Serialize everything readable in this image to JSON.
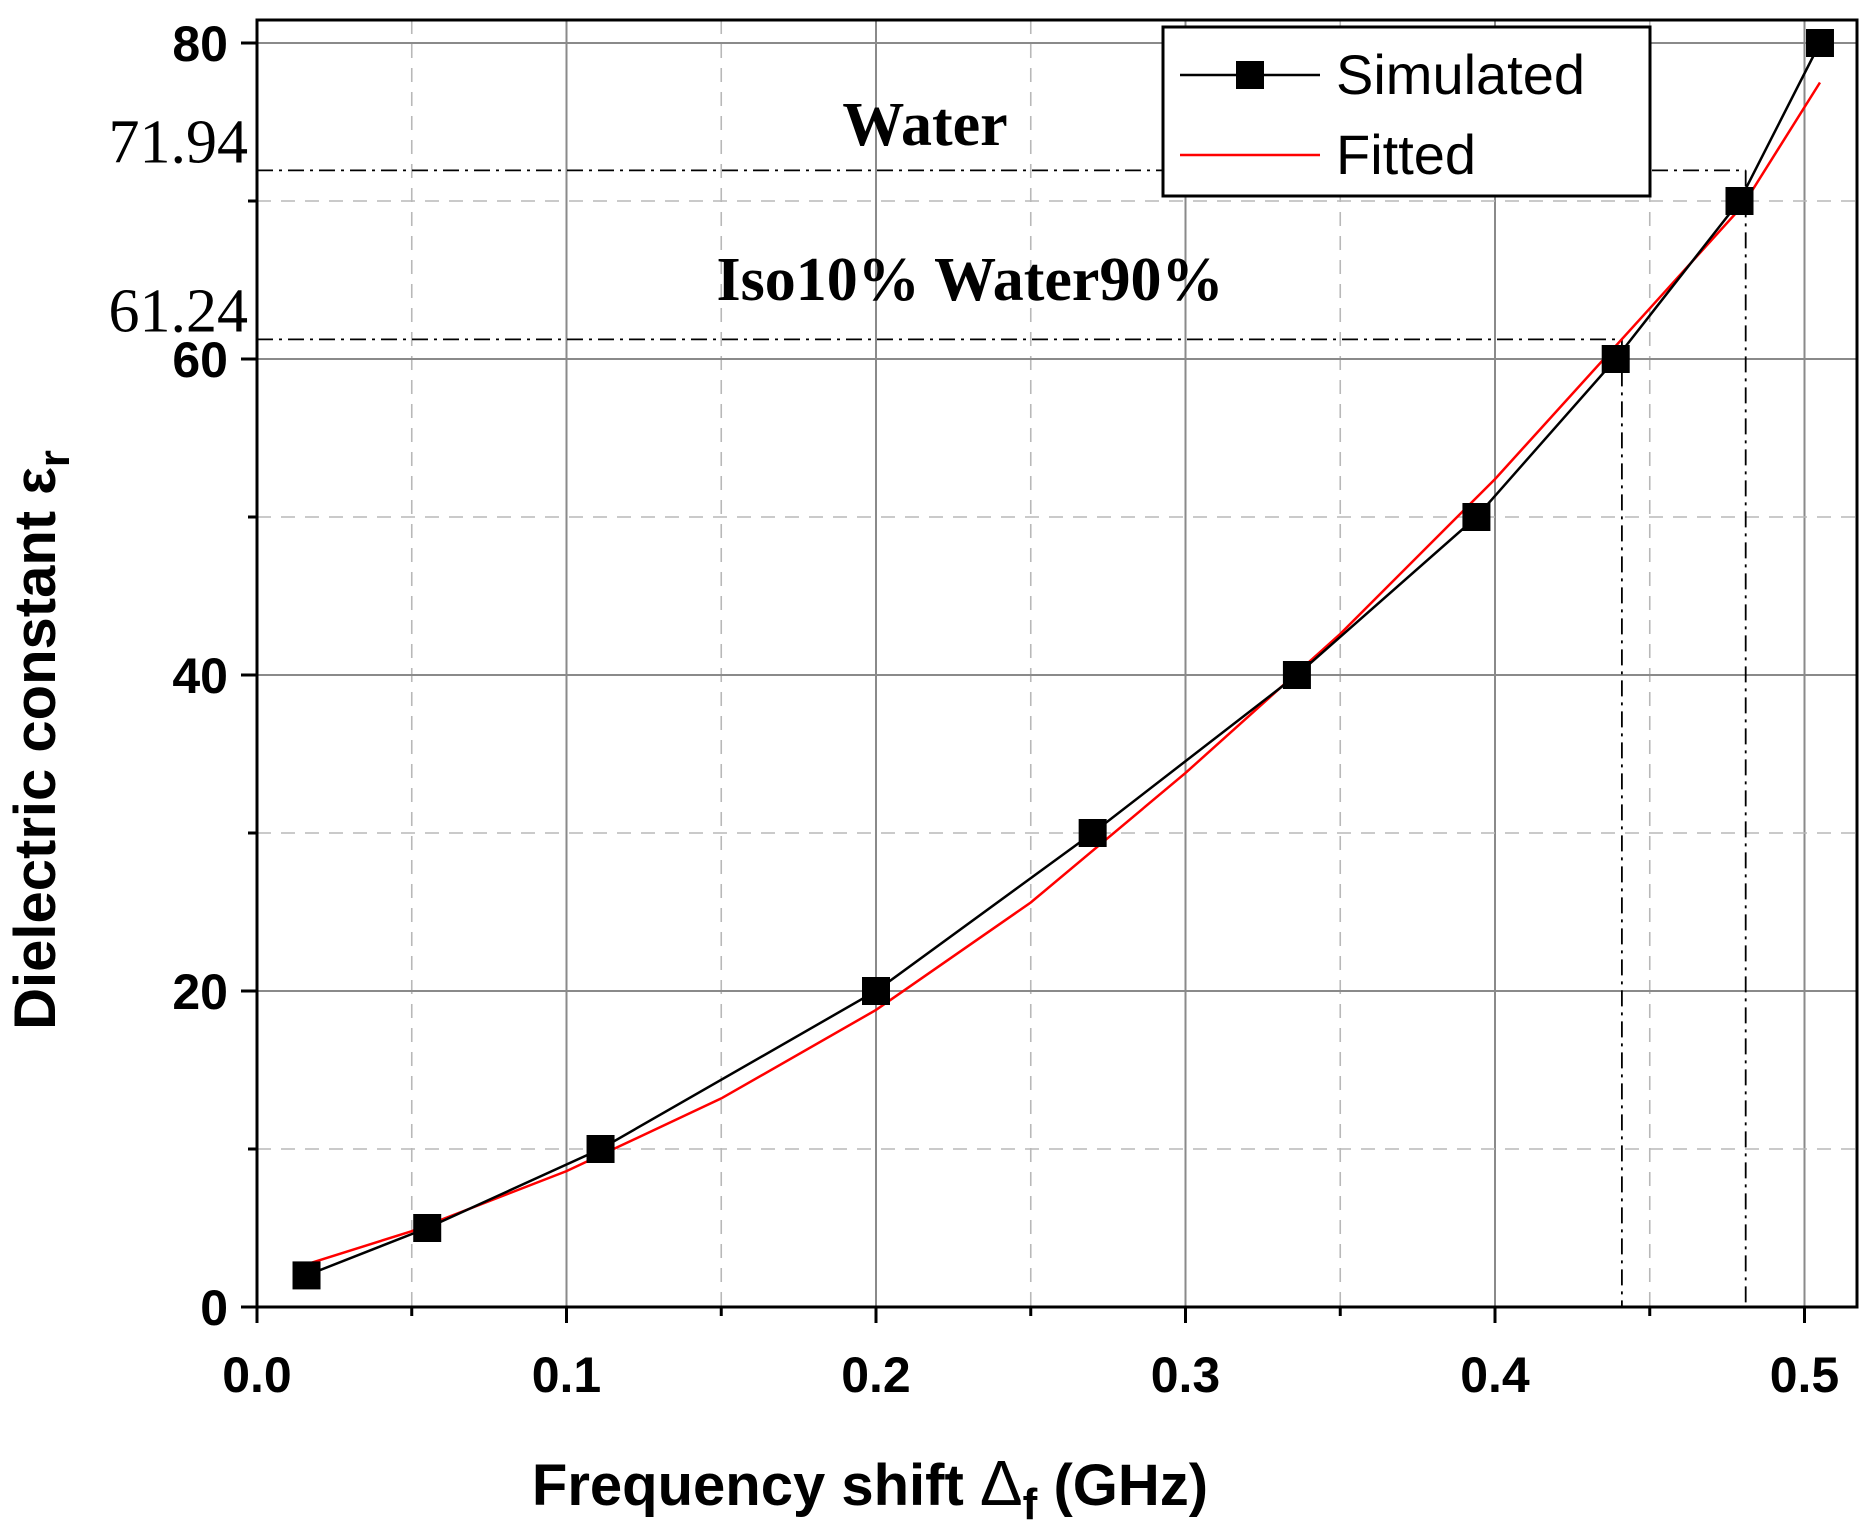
{
  "chart_data": {
    "type": "line",
    "xlabel": "Frequency shift",
    "xlabel_symbol": "Δ",
    "xlabel_subscript": "f",
    "xlabel_unit": "(GHz)",
    "ylabel": "Dielectric constant ε",
    "ylabel_subscript": "r",
    "xlim": [
      0.0,
      0.52
    ],
    "ylim": [
      0,
      80
    ],
    "x_ticks": [
      "0.0",
      "0.1",
      "0.2",
      "0.3",
      "0.4",
      "0.5"
    ],
    "y_ticks": [
      "0",
      "20",
      "40",
      "60",
      "80"
    ],
    "grid": true,
    "legend_position": "top-right",
    "series": [
      {
        "name": "Simulated",
        "style": "line-with-square-markers",
        "color": "#000000",
        "x": [
          0.016,
          0.055,
          0.111,
          0.2,
          0.27,
          0.336,
          0.394,
          0.439,
          0.479,
          0.505
        ],
        "y": [
          2,
          5,
          10,
          20,
          30,
          40,
          50,
          60,
          70,
          80
        ]
      },
      {
        "name": "Fitted",
        "style": "line",
        "color": "#ff0000",
        "x": [
          0.016,
          0.05,
          0.1,
          0.15,
          0.2,
          0.25,
          0.3,
          0.35,
          0.4,
          0.45,
          0.48,
          0.505
        ],
        "y": [
          2.7,
          4.8,
          8.6,
          13.2,
          18.8,
          25.6,
          33.8,
          42.6,
          52.4,
          63.2,
          69.7,
          77.5
        ]
      }
    ],
    "reference_lines": [
      {
        "label": "71.94",
        "y": 71.94,
        "x": 0.481
      },
      {
        "label": "61.24",
        "y": 61.24,
        "x": 0.441
      }
    ],
    "annotations": [
      "Water",
      "Iso10% Water90%"
    ]
  }
}
